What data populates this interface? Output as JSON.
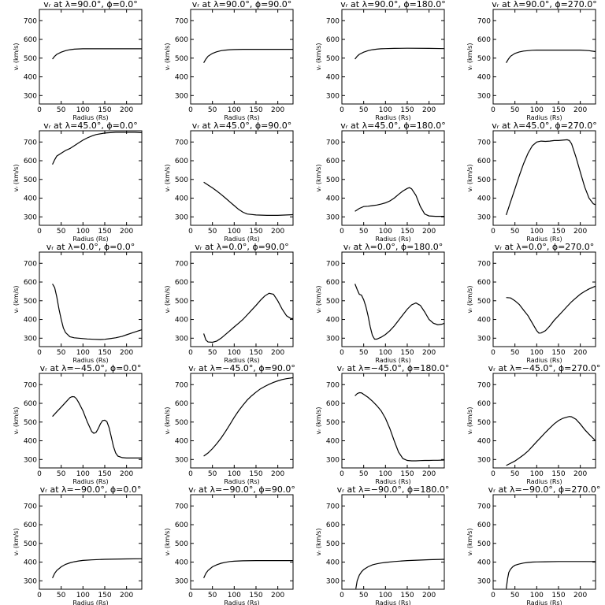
{
  "chart_data": [
    {
      "type": "line",
      "title": "vᵣ at λ=90.0°, ϕ=0.0°",
      "xlabel": "Radius (Rs)",
      "ylabel": "vᵣ (km/s)",
      "xlim": [
        0,
        235
      ],
      "ylim": [
        255,
        760
      ],
      "xticks": [
        "0",
        "50",
        "100",
        "150",
        "200"
      ],
      "yticks": [
        "300",
        "400",
        "500",
        "600",
        "700"
      ],
      "x": [
        30,
        35,
        40,
        50,
        60,
        70,
        80,
        90,
        100,
        120,
        150,
        200,
        235
      ],
      "y": [
        495,
        510,
        520,
        532,
        540,
        545,
        548,
        549,
        550,
        550,
        550,
        550,
        550
      ]
    },
    {
      "type": "line",
      "title": "vᵣ at λ=90.0°, ϕ=90.0°",
      "xlabel": "Radius (Rs)",
      "ylabel": "vᵣ (km/s)",
      "xlim": [
        0,
        235
      ],
      "ylim": [
        255,
        760
      ],
      "xticks": [
        "0",
        "50",
        "100",
        "150",
        "200"
      ],
      "yticks": [
        "300",
        "400",
        "500",
        "600",
        "700"
      ],
      "x": [
        30,
        35,
        40,
        50,
        60,
        70,
        80,
        90,
        100,
        120,
        150,
        200,
        235
      ],
      "y": [
        475,
        495,
        510,
        525,
        534,
        540,
        543,
        545,
        546,
        547,
        547,
        547,
        547
      ]
    },
    {
      "type": "line",
      "title": "vᵣ at λ=90.0°, ϕ=180.0°",
      "xlabel": "Radius (Rs)",
      "ylabel": "vᵣ (km/s)",
      "xlim": [
        0,
        235
      ],
      "ylim": [
        255,
        760
      ],
      "xticks": [
        "0",
        "50",
        "100",
        "150",
        "200"
      ],
      "yticks": [
        "300",
        "400",
        "500",
        "600",
        "700"
      ],
      "x": [
        30,
        35,
        40,
        50,
        60,
        70,
        80,
        90,
        100,
        120,
        150,
        200,
        235
      ],
      "y": [
        495,
        510,
        520,
        532,
        540,
        545,
        548,
        550,
        551,
        552,
        553,
        552,
        551
      ]
    },
    {
      "type": "line",
      "title": "vᵣ at λ=90.0°, ϕ=270.0°",
      "xlabel": "Radius (Rs)",
      "ylabel": "vᵣ (km/s)",
      "xlim": [
        0,
        235
      ],
      "ylim": [
        255,
        760
      ],
      "xticks": [
        "0",
        "50",
        "100",
        "150",
        "200"
      ],
      "yticks": [
        "300",
        "400",
        "500",
        "600",
        "700"
      ],
      "x": [
        30,
        35,
        40,
        50,
        60,
        70,
        80,
        90,
        100,
        120,
        150,
        200,
        220,
        235
      ],
      "y": [
        475,
        495,
        510,
        525,
        533,
        538,
        540,
        542,
        543,
        543,
        543,
        543,
        540,
        535
      ]
    },
    {
      "type": "line",
      "title": "vᵣ at λ=45.0°, ϕ=0.0°",
      "xlabel": "Radius (Rs)",
      "ylabel": "vᵣ (km/s)",
      "xlim": [
        0,
        235
      ],
      "ylim": [
        255,
        760
      ],
      "xticks": [
        "0",
        "50",
        "100",
        "150",
        "200"
      ],
      "yticks": [
        "300",
        "400",
        "500",
        "600",
        "700"
      ],
      "x": [
        30,
        35,
        40,
        50,
        60,
        70,
        80,
        90,
        100,
        110,
        120,
        130,
        150,
        175,
        200,
        220,
        235
      ],
      "y": [
        580,
        605,
        625,
        640,
        655,
        665,
        680,
        695,
        710,
        722,
        732,
        740,
        748,
        752,
        752,
        752,
        750
      ]
    },
    {
      "type": "line",
      "title": "vᵣ at λ=45.0°, ϕ=90.0°",
      "xlabel": "Radius (Rs)",
      "ylabel": "vᵣ (km/s)",
      "xlim": [
        0,
        235
      ],
      "ylim": [
        255,
        760
      ],
      "xticks": [
        "0",
        "50",
        "100",
        "150",
        "200"
      ],
      "yticks": [
        "300",
        "400",
        "500",
        "600",
        "700"
      ],
      "x": [
        30,
        40,
        50,
        60,
        70,
        80,
        90,
        100,
        110,
        120,
        130,
        150,
        175,
        200,
        220,
        235
      ],
      "y": [
        485,
        470,
        455,
        438,
        420,
        400,
        380,
        360,
        340,
        325,
        315,
        310,
        308,
        308,
        310,
        312
      ]
    },
    {
      "type": "line",
      "title": "vᵣ at λ=45.0°, ϕ=180.0°",
      "xlabel": "Radius (Rs)",
      "ylabel": "vᵣ (km/s)",
      "xlim": [
        0,
        235
      ],
      "ylim": [
        255,
        760
      ],
      "xticks": [
        "0",
        "50",
        "100",
        "150",
        "200"
      ],
      "yticks": [
        "300",
        "400",
        "500",
        "600",
        "700"
      ],
      "x": [
        30,
        40,
        50,
        60,
        70,
        80,
        90,
        100,
        110,
        120,
        130,
        140,
        150,
        155,
        160,
        170,
        180,
        190,
        200,
        215,
        235
      ],
      "y": [
        330,
        345,
        355,
        357,
        360,
        363,
        368,
        375,
        385,
        400,
        420,
        438,
        452,
        456,
        450,
        415,
        355,
        315,
        305,
        303,
        303
      ]
    },
    {
      "type": "line",
      "title": "vᵣ at λ=45.0°, ϕ=270.0°",
      "xlabel": "Radius (Rs)",
      "ylabel": "vᵣ (km/s)",
      "xlim": [
        0,
        235
      ],
      "ylim": [
        255,
        760
      ],
      "xticks": [
        "0",
        "50",
        "100",
        "150",
        "200"
      ],
      "yticks": [
        "300",
        "400",
        "500",
        "600",
        "700"
      ],
      "x": [
        30,
        40,
        50,
        60,
        70,
        80,
        90,
        100,
        110,
        120,
        130,
        140,
        150,
        160,
        170,
        175,
        180,
        190,
        200,
        210,
        220,
        230,
        235
      ],
      "y": [
        310,
        380,
        450,
        520,
        585,
        640,
        680,
        700,
        705,
        703,
        705,
        708,
        708,
        710,
        712,
        708,
        690,
        620,
        540,
        460,
        400,
        370,
        365
      ]
    },
    {
      "type": "line",
      "title": "vᵣ at λ=0.0°, ϕ=0.0°",
      "xlabel": "Radius (Rs)",
      "ylabel": "vᵣ (km/s)",
      "xlim": [
        0,
        235
      ],
      "ylim": [
        255,
        760
      ],
      "xticks": [
        "0",
        "50",
        "100",
        "150",
        "200"
      ],
      "yticks": [
        "300",
        "400",
        "500",
        "600",
        "700"
      ],
      "x": [
        30,
        35,
        40,
        45,
        50,
        55,
        60,
        70,
        80,
        90,
        100,
        110,
        125,
        140,
        150,
        160,
        175,
        190,
        200,
        215,
        235
      ],
      "y": [
        590,
        570,
        520,
        455,
        400,
        355,
        330,
        308,
        302,
        300,
        298,
        296,
        294,
        293,
        294,
        297,
        302,
        310,
        318,
        330,
        345
      ]
    },
    {
      "type": "line",
      "title": "vᵣ at λ=0.0°, ϕ=90.0°",
      "xlabel": "Radius (Rs)",
      "ylabel": "vᵣ (km/s)",
      "xlim": [
        0,
        235
      ],
      "ylim": [
        255,
        760
      ],
      "xticks": [
        "0",
        "50",
        "100",
        "150",
        "200"
      ],
      "yticks": [
        "300",
        "400",
        "500",
        "600",
        "700"
      ],
      "x": [
        30,
        35,
        40,
        50,
        60,
        70,
        80,
        90,
        100,
        110,
        120,
        130,
        140,
        150,
        160,
        170,
        180,
        190,
        200,
        210,
        220,
        230,
        235
      ],
      "y": [
        325,
        290,
        280,
        278,
        285,
        300,
        320,
        340,
        360,
        380,
        400,
        425,
        450,
        475,
        502,
        525,
        540,
        535,
        500,
        455,
        420,
        405,
        405
      ]
    },
    {
      "type": "line",
      "title": "vᵣ at λ=0.0°, ϕ=180.0°",
      "xlabel": "Radius (Rs)",
      "ylabel": "vᵣ (km/s)",
      "xlim": [
        0,
        235
      ],
      "ylim": [
        255,
        760
      ],
      "xticks": [
        "0",
        "50",
        "100",
        "150",
        "200"
      ],
      "yticks": [
        "300",
        "400",
        "500",
        "600",
        "700"
      ],
      "x": [
        30,
        35,
        40,
        45,
        50,
        55,
        60,
        65,
        70,
        75,
        80,
        90,
        100,
        110,
        120,
        130,
        140,
        150,
        160,
        170,
        180,
        190,
        200,
        210,
        220,
        230,
        235
      ],
      "y": [
        590,
        560,
        535,
        530,
        505,
        470,
        420,
        360,
        315,
        295,
        295,
        305,
        320,
        340,
        365,
        395,
        425,
        455,
        478,
        488,
        475,
        440,
        400,
        380,
        372,
        375,
        380
      ]
    },
    {
      "type": "line",
      "title": "vᵣ at λ=0.0°, ϕ=270.0°",
      "xlabel": "Radius (Rs)",
      "ylabel": "vᵣ (km/s)",
      "xlim": [
        0,
        235
      ],
      "ylim": [
        255,
        760
      ],
      "xticks": [
        "0",
        "50",
        "100",
        "150",
        "200"
      ],
      "yticks": [
        "300",
        "400",
        "500",
        "600",
        "700"
      ],
      "x": [
        30,
        40,
        50,
        60,
        70,
        80,
        90,
        100,
        105,
        110,
        120,
        130,
        140,
        150,
        160,
        170,
        180,
        190,
        200,
        210,
        220,
        230,
        235
      ],
      "y": [
        517,
        515,
        500,
        480,
        450,
        420,
        380,
        340,
        327,
        328,
        340,
        365,
        395,
        420,
        445,
        470,
        495,
        515,
        535,
        550,
        563,
        573,
        578
      ]
    },
    {
      "type": "line",
      "title": "vᵣ at λ=−45.0°, ϕ=0.0°",
      "xlabel": "Radius (Rs)",
      "ylabel": "vᵣ (km/s)",
      "xlim": [
        0,
        235
      ],
      "ylim": [
        255,
        760
      ],
      "xticks": [
        "0",
        "50",
        "100",
        "150",
        "200"
      ],
      "yticks": [
        "300",
        "400",
        "500",
        "600",
        "700"
      ],
      "x": [
        30,
        40,
        50,
        60,
        70,
        75,
        80,
        85,
        90,
        100,
        110,
        120,
        125,
        130,
        135,
        140,
        145,
        150,
        155,
        160,
        165,
        170,
        175,
        180,
        190,
        200,
        210,
        220,
        235
      ],
      "y": [
        530,
        555,
        580,
        605,
        630,
        636,
        635,
        625,
        605,
        560,
        500,
        450,
        440,
        445,
        465,
        490,
        508,
        510,
        502,
        470,
        420,
        370,
        335,
        318,
        310,
        308,
        308,
        308,
        308
      ]
    },
    {
      "type": "line",
      "title": "vᵣ at λ=−45.0°, ϕ=90.0°",
      "xlabel": "Radius (Rs)",
      "ylabel": "vᵣ (km/s)",
      "xlim": [
        0,
        235
      ],
      "ylim": [
        255,
        760
      ],
      "xticks": [
        "0",
        "50",
        "100",
        "150",
        "200"
      ],
      "yticks": [
        "300",
        "400",
        "500",
        "600",
        "700"
      ],
      "x": [
        30,
        40,
        50,
        60,
        70,
        80,
        90,
        100,
        110,
        120,
        130,
        140,
        150,
        160,
        170,
        180,
        190,
        200,
        210,
        220,
        235
      ],
      "y": [
        318,
        335,
        358,
        385,
        415,
        450,
        487,
        525,
        560,
        590,
        618,
        640,
        660,
        677,
        690,
        702,
        712,
        720,
        727,
        732,
        737
      ]
    },
    {
      "type": "line",
      "title": "vᵣ at λ=−45.0°, ϕ=180.0°",
      "xlabel": "Radius (Rs)",
      "ylabel": "vᵣ (km/s)",
      "xlim": [
        0,
        235
      ],
      "ylim": [
        255,
        760
      ],
      "xticks": [
        "0",
        "50",
        "100",
        "150",
        "200"
      ],
      "yticks": [
        "300",
        "400",
        "500",
        "600",
        "700"
      ],
      "x": [
        30,
        35,
        40,
        45,
        50,
        60,
        70,
        80,
        90,
        100,
        110,
        120,
        130,
        140,
        150,
        160,
        170,
        180,
        190,
        200,
        210,
        220,
        235
      ],
      "y": [
        640,
        652,
        657,
        656,
        648,
        632,
        612,
        588,
        560,
        520,
        465,
        400,
        340,
        305,
        295,
        293,
        293,
        294,
        295,
        295,
        296,
        296,
        297
      ]
    },
    {
      "type": "line",
      "title": "vᵣ at λ=−45.0°, ϕ=270.0°",
      "xlabel": "Radius (Rs)",
      "ylabel": "vᵣ (km/s)",
      "xlim": [
        0,
        235
      ],
      "ylim": [
        255,
        760
      ],
      "xticks": [
        "0",
        "50",
        "100",
        "150",
        "200"
      ],
      "yticks": [
        "300",
        "400",
        "500",
        "600",
        "700"
      ],
      "x": [
        30,
        40,
        50,
        60,
        70,
        80,
        90,
        100,
        110,
        120,
        130,
        140,
        150,
        160,
        170,
        175,
        180,
        190,
        200,
        210,
        220,
        235
      ],
      "y": [
        268,
        280,
        292,
        308,
        325,
        345,
        370,
        395,
        420,
        445,
        468,
        490,
        508,
        520,
        527,
        530,
        528,
        515,
        490,
        460,
        435,
        400
      ]
    },
    {
      "type": "line",
      "title": "vᵣ at λ=−90.0°, ϕ=0.0°",
      "xlabel": "Radius (Rs)",
      "ylabel": "vᵣ (km/s)",
      "xlim": [
        0,
        235
      ],
      "ylim": [
        255,
        760
      ],
      "xticks": [
        "0",
        "50",
        "100",
        "150",
        "200"
      ],
      "yticks": [
        "300",
        "400",
        "500",
        "600",
        "700"
      ],
      "x": [
        30,
        35,
        40,
        50,
        60,
        70,
        80,
        90,
        100,
        120,
        150,
        200,
        235
      ],
      "y": [
        315,
        340,
        355,
        375,
        388,
        396,
        402,
        406,
        409,
        412,
        415,
        417,
        418
      ]
    },
    {
      "type": "line",
      "title": "vᵣ at λ=−90.0°, ϕ=90.0°",
      "xlabel": "Radius (Rs)",
      "ylabel": "vᵣ (km/s)",
      "xlim": [
        0,
        235
      ],
      "ylim": [
        255,
        760
      ],
      "xticks": [
        "0",
        "50",
        "100",
        "150",
        "200"
      ],
      "yticks": [
        "300",
        "400",
        "500",
        "600",
        "700"
      ],
      "x": [
        30,
        35,
        40,
        50,
        60,
        70,
        80,
        90,
        100,
        120,
        150,
        200,
        235
      ],
      "y": [
        315,
        340,
        355,
        375,
        386,
        394,
        399,
        403,
        405,
        407,
        408,
        408,
        408
      ]
    },
    {
      "type": "line",
      "title": "vᵣ at λ=−90.0°, ϕ=180.0°",
      "xlabel": "Radius (Rs)",
      "ylabel": "vᵣ (km/s)",
      "xlim": [
        0,
        235
      ],
      "ylim": [
        255,
        760
      ],
      "xticks": [
        "0",
        "50",
        "100",
        "150",
        "200"
      ],
      "yticks": [
        "300",
        "400",
        "500",
        "600",
        "700"
      ],
      "x": [
        32,
        35,
        40,
        45,
        50,
        60,
        70,
        80,
        90,
        100,
        120,
        150,
        200,
        235
      ],
      "y": [
        258,
        300,
        330,
        348,
        360,
        375,
        385,
        391,
        395,
        398,
        403,
        408,
        413,
        415
      ]
    },
    {
      "type": "line",
      "title": "vᵣ at λ=−90.0°, ϕ=270.0°",
      "xlabel": "Radius (Rs)",
      "ylabel": "vᵣ (km/s)",
      "xlim": [
        0,
        235
      ],
      "ylim": [
        255,
        760
      ],
      "xticks": [
        "0",
        "50",
        "100",
        "150",
        "200"
      ],
      "yticks": [
        "300",
        "400",
        "500",
        "600",
        "700"
      ],
      "x": [
        30,
        33,
        36,
        40,
        45,
        50,
        60,
        70,
        80,
        90,
        100,
        120,
        150,
        200,
        235
      ],
      "y": [
        258,
        310,
        345,
        362,
        375,
        383,
        390,
        395,
        398,
        400,
        401,
        402,
        403,
        403,
        403
      ]
    }
  ]
}
